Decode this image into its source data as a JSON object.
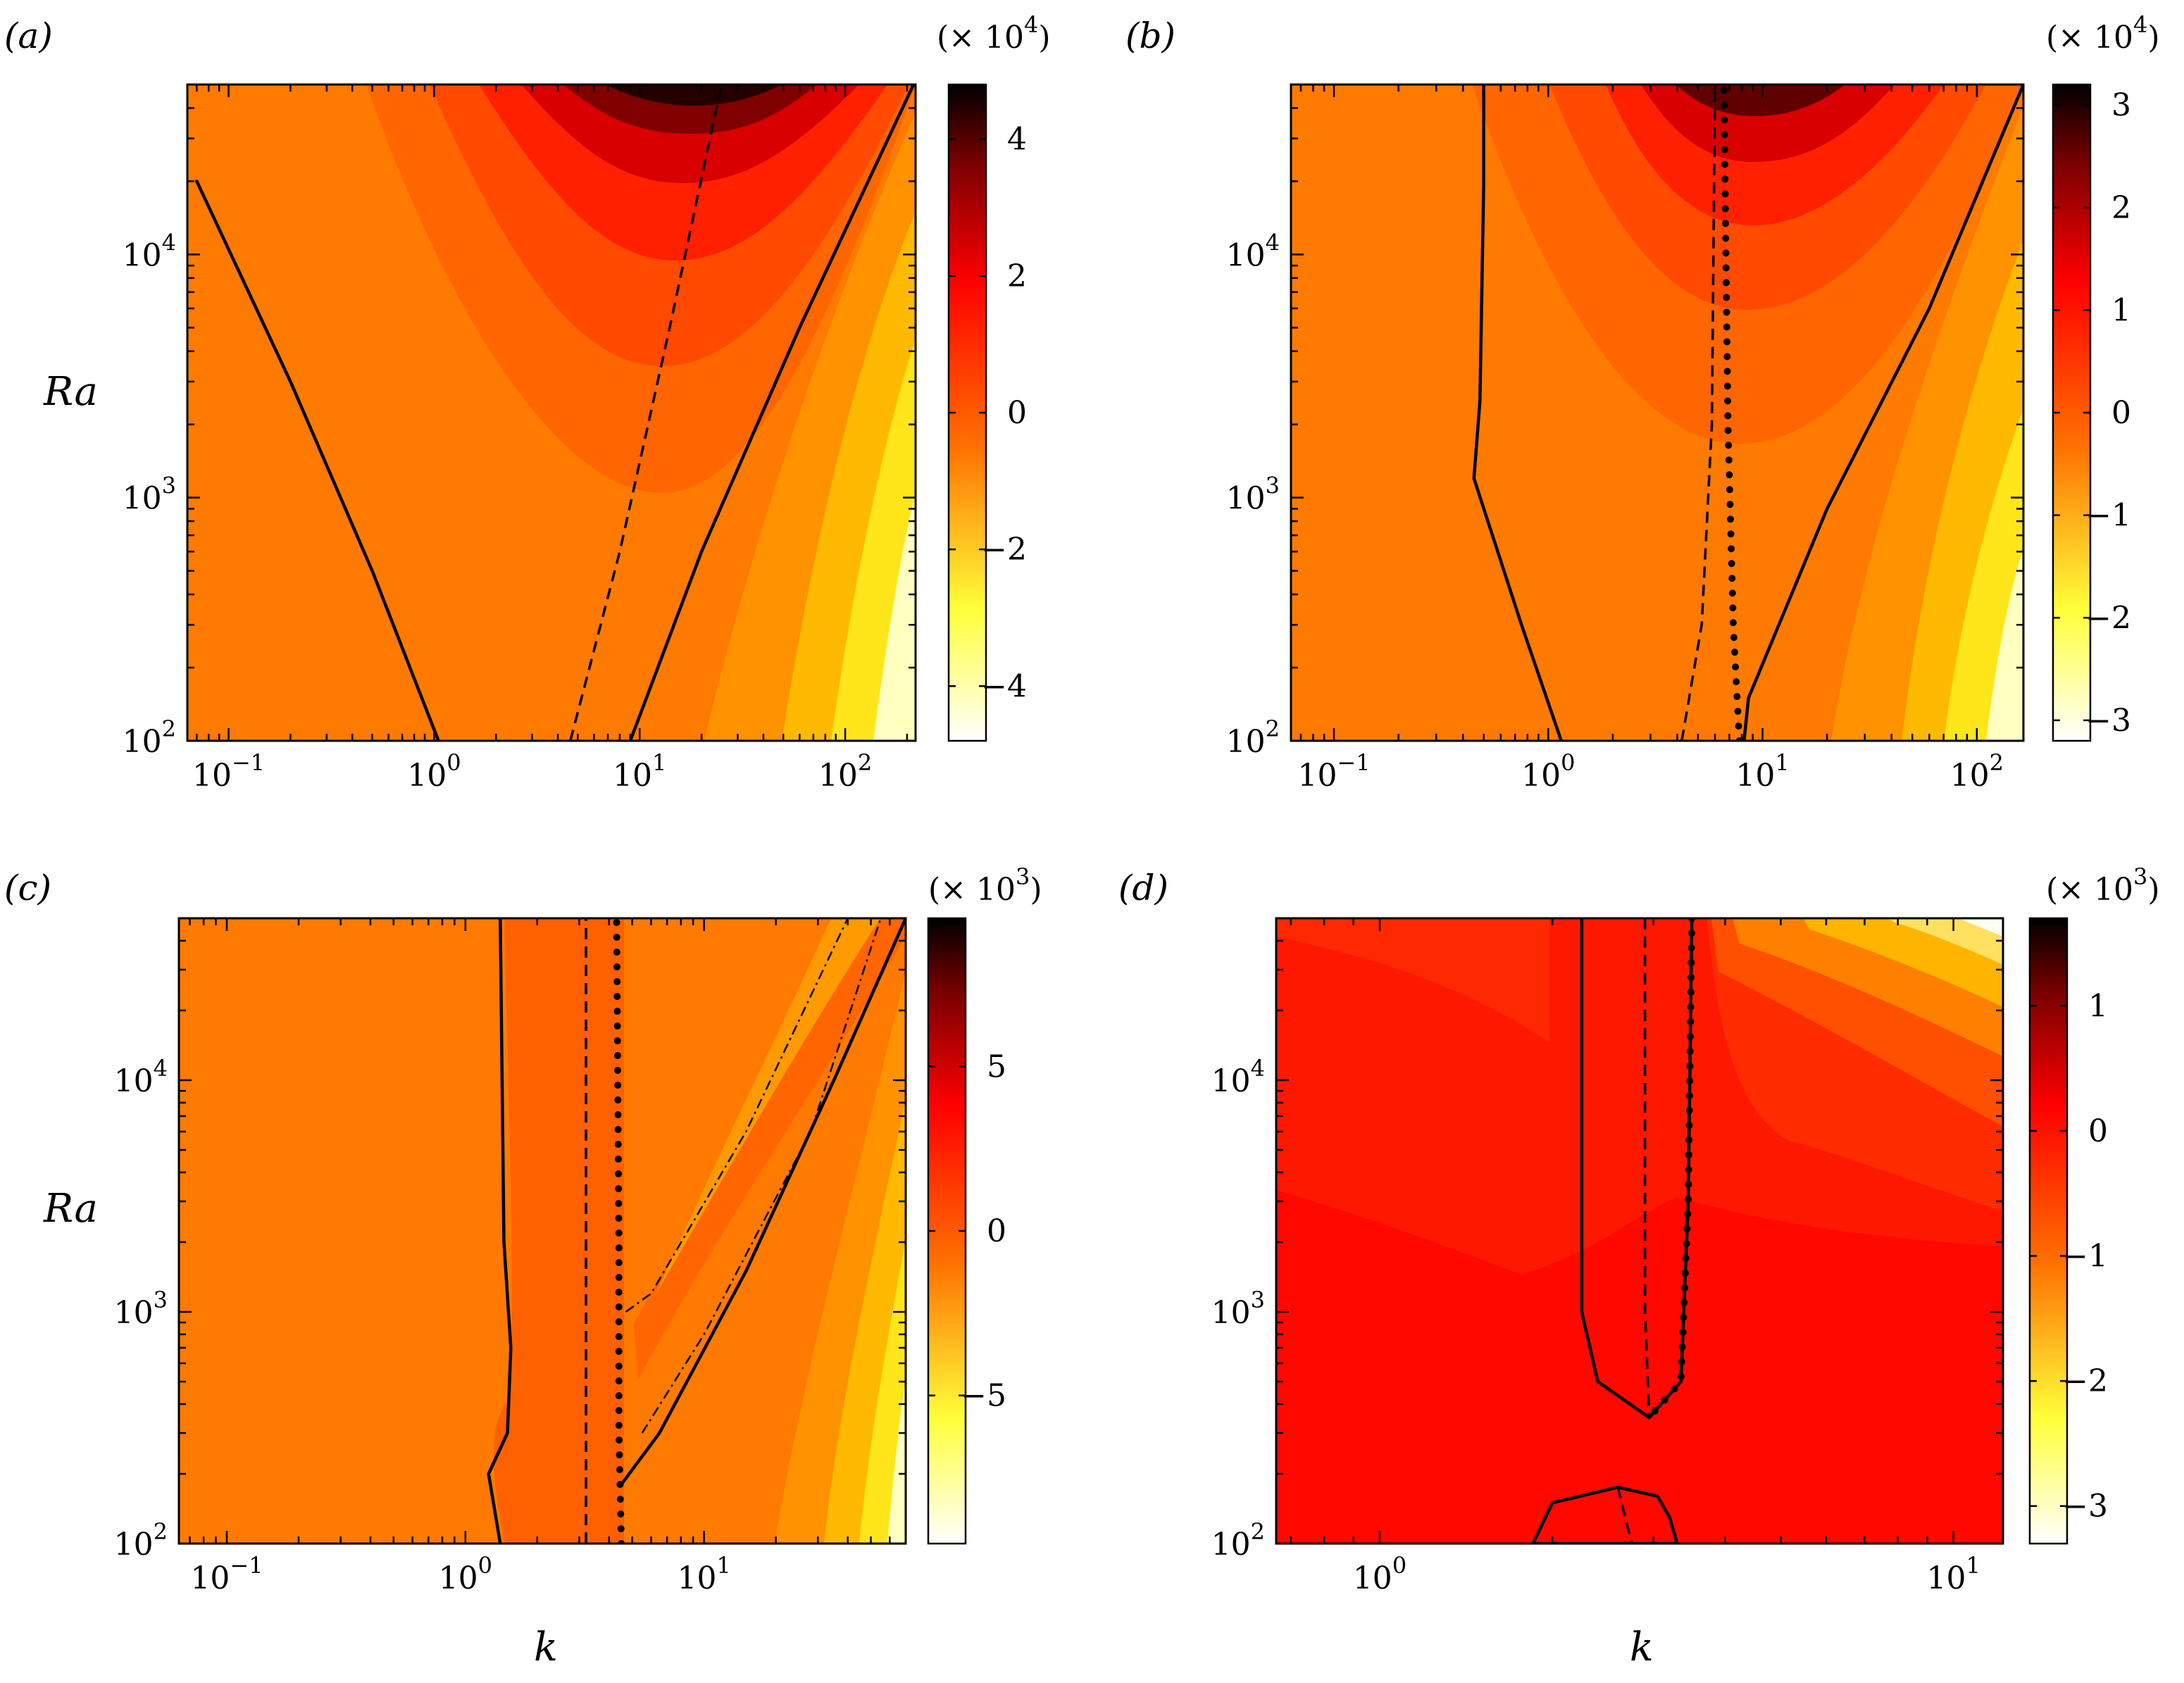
{
  "figure": {
    "panels": [
      "(a)",
      "(b)",
      "(c)",
      "(d)"
    ],
    "ylabel": "Ra",
    "xlabel": "k"
  },
  "colors": {
    "white": "#ffffff",
    "yellow": "#ffff3a",
    "orange": "#ff7000",
    "red": "#ff0000",
    "darkred": "#7a0000",
    "black": "#000000"
  },
  "chart_data": [
    {
      "type": "heatmap",
      "panel": "(a)",
      "title": "",
      "xlabel": "",
      "ylabel": "Ra",
      "xscale": "log",
      "yscale": "log",
      "xlim": [
        0.063,
        220
      ],
      "ylim": [
        100,
        50000
      ],
      "x_ticks": [
        "10^-1",
        "10^0",
        "10^1",
        "10^2"
      ],
      "y_ticks": [
        "10^2",
        "10^3",
        "10^4"
      ],
      "colorbar": {
        "multiplier": "(× 10^4)",
        "range": [
          -4.8,
          4.8
        ],
        "ticks": [
          4,
          2,
          0,
          -2,
          -4
        ],
        "tick_labels": [
          "4",
          "2",
          "0",
          "−2",
          "−4"
        ]
      },
      "series": [
        {
          "style": "solid",
          "points": [
            [
              0.07,
              20000
            ],
            [
              0.2,
              3000
            ],
            [
              0.5,
              500
            ],
            [
              1.05,
              100
            ]
          ]
        },
        {
          "style": "dashed",
          "points": [
            [
              4.6,
              100
            ],
            [
              8,
              600
            ],
            [
              14,
              5000
            ],
            [
              25,
              50000
            ]
          ]
        },
        {
          "style": "solid",
          "points": [
            [
              9,
              100
            ],
            [
              20,
              600
            ],
            [
              60,
              5000
            ],
            [
              215,
              50000
            ]
          ]
        }
      ]
    },
    {
      "type": "heatmap",
      "panel": "(b)",
      "title": "",
      "xlabel": "",
      "ylabel": "",
      "xscale": "log",
      "yscale": "log",
      "xlim": [
        0.063,
        165
      ],
      "ylim": [
        100,
        50000
      ],
      "x_ticks": [
        "10^-1",
        "10^0",
        "10^1",
        "10^2"
      ],
      "y_ticks": [
        "10^2",
        "10^3",
        "10^4"
      ],
      "colorbar": {
        "multiplier": "(× 10^4)",
        "range": [
          -3.2,
          3.2
        ],
        "ticks": [
          3,
          2,
          1,
          0,
          -1,
          -2,
          -3
        ],
        "tick_labels": [
          "3",
          "2",
          "1",
          "0",
          "−1",
          "−2",
          "−3"
        ]
      },
      "series": [
        {
          "style": "solid",
          "points": [
            [
              1.15,
              100
            ],
            [
              0.75,
              300
            ],
            [
              0.45,
              1200
            ],
            [
              0.48,
              2500
            ],
            [
              0.5,
              20000
            ],
            [
              0.5,
              50000
            ]
          ]
        },
        {
          "style": "dashed",
          "points": [
            [
              4.2,
              100
            ],
            [
              5.2,
              300
            ],
            [
              5.8,
              2000
            ],
            [
              6.0,
              50000
            ]
          ]
        },
        {
          "style": "dotted",
          "points": [
            [
              7.8,
              100
            ],
            [
              7.3,
              300
            ],
            [
              6.9,
              2000
            ],
            [
              6.6,
              50000
            ]
          ]
        },
        {
          "style": "solid",
          "points": [
            [
              8.2,
              100
            ],
            [
              8.6,
              150
            ],
            [
              20,
              900
            ],
            [
              60,
              6000
            ],
            [
              165,
              50000
            ]
          ]
        }
      ]
    },
    {
      "type": "heatmap",
      "panel": "(c)",
      "title": "",
      "xlabel": "k",
      "ylabel": "Ra",
      "xscale": "log",
      "yscale": "log",
      "xlim": [
        0.063,
        70
      ],
      "ylim": [
        100,
        50000
      ],
      "x_ticks": [
        "10^-1",
        "10^0",
        "10^1"
      ],
      "y_ticks": [
        "10^2",
        "10^3",
        "10^4"
      ],
      "colorbar": {
        "multiplier": "(× 10^3)",
        "range": [
          -9.5,
          9.5
        ],
        "ticks": [
          5,
          0,
          -5
        ],
        "tick_labels": [
          "5",
          "0",
          "−5"
        ]
      },
      "series": [
        {
          "style": "solid",
          "points": [
            [
              1.4,
              100
            ],
            [
              1.25,
              200
            ],
            [
              1.5,
              300
            ],
            [
              1.55,
              700
            ],
            [
              1.45,
              2000
            ],
            [
              1.4,
              50000
            ]
          ]
        },
        {
          "style": "dashed",
          "points": [
            [
              3.2,
              100
            ],
            [
              3.2,
              50000
            ]
          ]
        },
        {
          "style": "dotted",
          "points": [
            [
              4.5,
              100
            ],
            [
              4.4,
              300
            ],
            [
              4.4,
              2000
            ],
            [
              4.3,
              50000
            ]
          ]
        },
        {
          "style": "solid",
          "points": [
            [
              4.5,
              180
            ],
            [
              6.5,
              300
            ],
            [
              15,
              1500
            ],
            [
              35,
              10000
            ],
            [
              70,
              50000
            ]
          ]
        },
        {
          "style": "dashdot",
          "points": [
            [
              4.7,
              1000
            ],
            [
              6,
              1200
            ],
            [
              15,
              6000
            ],
            [
              40,
              50000
            ]
          ]
        },
        {
          "style": "dashdot",
          "points": [
            [
              5.5,
              300
            ],
            [
              10,
              800
            ],
            [
              28,
              6000
            ],
            [
              55,
              50000
            ]
          ]
        }
      ]
    },
    {
      "type": "heatmap",
      "panel": "(d)",
      "title": "",
      "xlabel": "k",
      "ylabel": "",
      "xscale": "log",
      "yscale": "log",
      "xlim": [
        0.66,
        12.2
      ],
      "ylim": [
        100,
        50000
      ],
      "x_ticks": [
        "10^0",
        "10^1"
      ],
      "y_ticks": [
        "10^2",
        "10^3",
        "10^4"
      ],
      "colorbar": {
        "multiplier": "(× 10^3)",
        "range": [
          -3.3,
          1.7
        ],
        "ticks": [
          1,
          0,
          -1,
          -2,
          -3
        ],
        "tick_labels": [
          "1",
          "0",
          "−1",
          "−2",
          "−3"
        ]
      },
      "series": [
        {
          "style": "solid",
          "points": [
            [
              2.25,
              50000
            ],
            [
              2.25,
              1000
            ],
            [
              2.4,
              500
            ],
            [
              2.95,
              350
            ],
            [
              3.35,
              500
            ],
            [
              3.45,
              3000
            ],
            [
              3.5,
              50000
            ]
          ]
        },
        {
          "style": "dashed",
          "points": [
            [
              2.9,
              50000
            ],
            [
              2.9,
              1000
            ],
            [
              2.95,
              350
            ]
          ]
        },
        {
          "style": "dotted",
          "points": [
            [
              3.5,
              50000
            ],
            [
              3.45,
              3000
            ],
            [
              3.35,
              500
            ],
            [
              2.95,
              350
            ]
          ]
        },
        {
          "style": "solid",
          "points": [
            [
              1.85,
              100
            ],
            [
              2.0,
              150
            ],
            [
              2.6,
              175
            ],
            [
              3.05,
              160
            ],
            [
              3.2,
              130
            ],
            [
              3.3,
              100
            ],
            [
              1.85,
              100
            ]
          ]
        },
        {
          "style": "dashed",
          "points": [
            [
              2.6,
              175
            ],
            [
              2.75,
              100
            ]
          ]
        }
      ]
    }
  ]
}
